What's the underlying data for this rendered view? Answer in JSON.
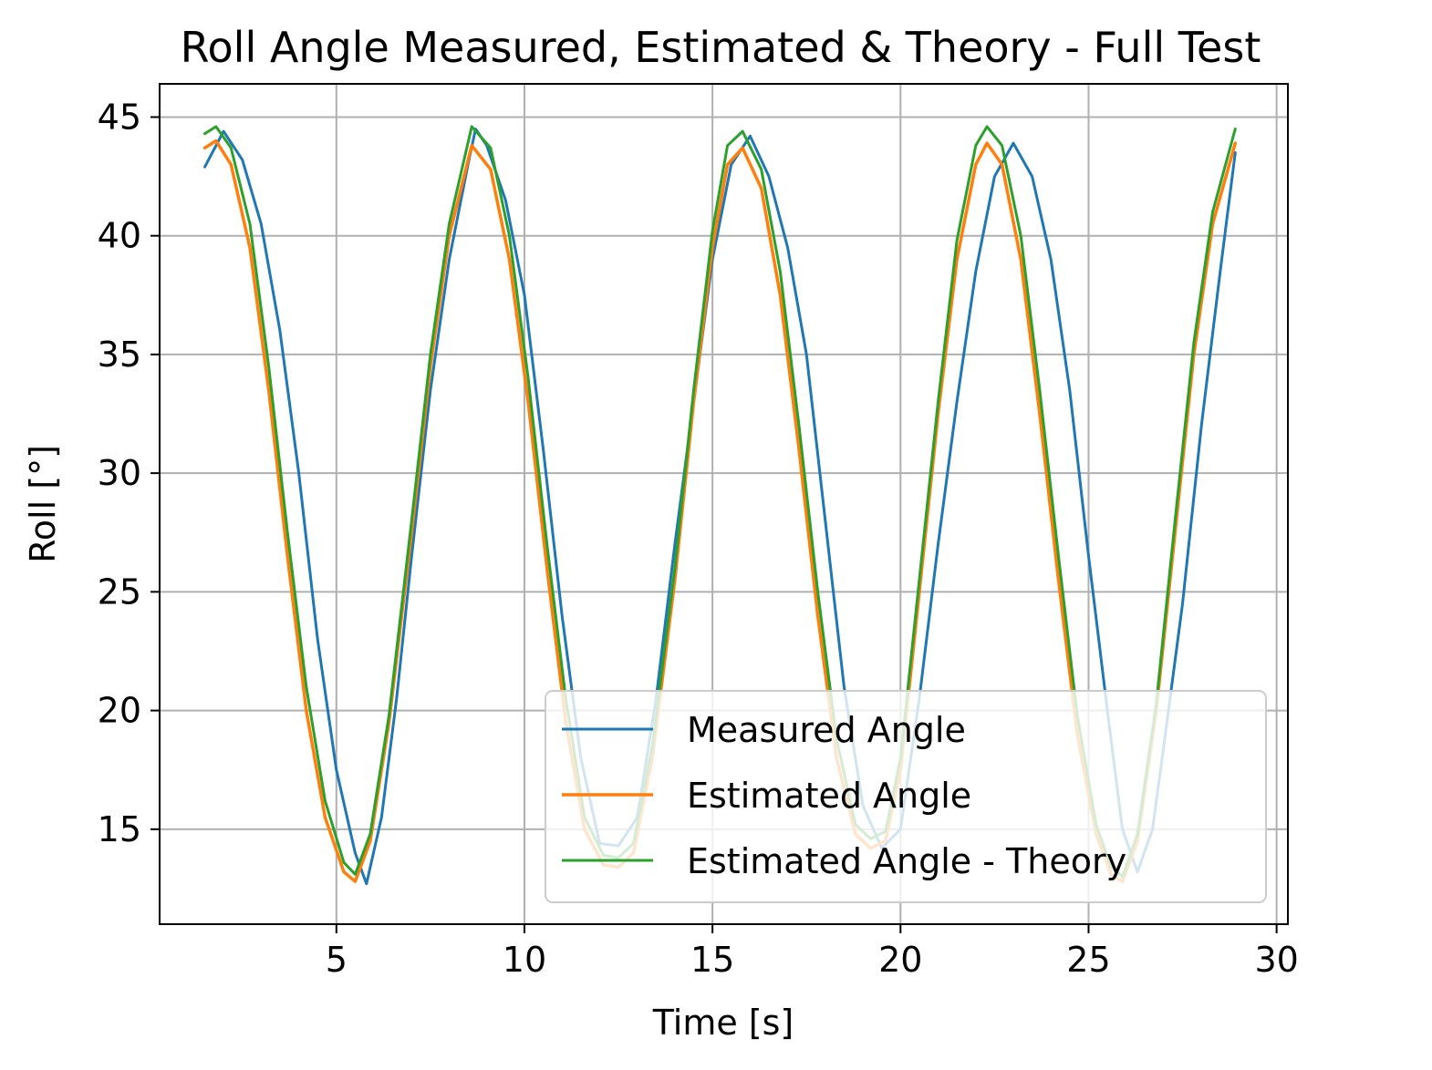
{
  "chart_data": {
    "type": "line",
    "title": "Roll Angle Measured, Estimated & Theory - Full Test",
    "xlabel": "Time [s]",
    "ylabel": "Roll [°]",
    "xlim": [
      0.3,
      30.3
    ],
    "ylim": [
      11.0,
      46.4
    ],
    "xticks": [
      5,
      10,
      15,
      20,
      25,
      30
    ],
    "yticks": [
      15,
      20,
      25,
      30,
      35,
      40,
      45
    ],
    "grid": true,
    "legend_position": "lower-right",
    "series": [
      {
        "name": "Measured Angle",
        "color": "#1f77b4",
        "x": [
          1.5,
          2.0,
          2.5,
          3.0,
          3.5,
          4.0,
          4.5,
          5.0,
          5.5,
          5.8,
          6.2,
          6.6,
          7.0,
          7.5,
          8.0,
          8.5,
          8.7,
          9.0,
          9.5,
          10.0,
          10.5,
          11.0,
          11.5,
          12.0,
          12.5,
          13.0,
          13.5,
          14.0,
          14.5,
          15.0,
          15.5,
          16.0,
          16.5,
          17.0,
          17.5,
          18.0,
          18.5,
          19.0,
          19.5,
          20.0,
          20.5,
          21.0,
          21.5,
          22.0,
          22.5,
          23.0,
          23.5,
          24.0,
          24.5,
          25.0,
          25.5,
          25.9,
          26.3,
          26.7,
          27.0,
          27.5,
          28.0,
          28.5,
          28.9
        ],
        "y": [
          42.9,
          44.4,
          43.2,
          40.5,
          36.0,
          30.0,
          23.0,
          17.5,
          14.0,
          12.7,
          15.5,
          20.5,
          26.5,
          33.5,
          39.0,
          43.0,
          44.5,
          43.8,
          41.5,
          37.5,
          31.0,
          24.0,
          18.0,
          14.4,
          14.3,
          15.5,
          20.5,
          27.0,
          33.0,
          39.0,
          43.0,
          44.2,
          42.5,
          39.5,
          35.0,
          28.0,
          21.0,
          16.0,
          14.2,
          15.0,
          20.5,
          27.0,
          33.0,
          38.5,
          42.5,
          43.9,
          42.5,
          39.0,
          33.5,
          26.5,
          20.0,
          15.0,
          13.2,
          15.0,
          18.5,
          24.5,
          32.0,
          38.5,
          43.5
        ]
      },
      {
        "name": "Estimated Angle",
        "color": "#ff7f0e",
        "x": [
          1.5,
          1.8,
          2.2,
          2.7,
          3.2,
          3.7,
          4.2,
          4.7,
          5.2,
          5.5,
          5.9,
          6.4,
          7.0,
          7.5,
          8.0,
          8.6,
          9.1,
          9.6,
          10.1,
          10.6,
          11.1,
          11.6,
          12.1,
          12.5,
          12.9,
          13.4,
          14.0,
          14.5,
          15.0,
          15.4,
          15.8,
          16.3,
          16.8,
          17.3,
          17.8,
          18.3,
          18.8,
          19.2,
          19.6,
          20.0,
          20.5,
          21.0,
          21.5,
          22.0,
          22.3,
          22.7,
          23.2,
          23.7,
          24.2,
          24.7,
          25.2,
          25.6,
          25.9,
          26.3,
          26.8,
          27.3,
          27.8,
          28.3,
          28.9
        ],
        "y": [
          43.7,
          44.0,
          43.0,
          39.5,
          33.5,
          26.5,
          20.0,
          15.5,
          13.2,
          12.8,
          14.5,
          19.5,
          27.5,
          34.5,
          40.0,
          43.8,
          42.8,
          39.0,
          33.0,
          26.0,
          19.5,
          15.0,
          13.5,
          13.4,
          14.0,
          18.0,
          25.5,
          33.0,
          39.5,
          43.0,
          43.7,
          42.0,
          37.5,
          31.0,
          24.0,
          18.0,
          14.8,
          14.2,
          14.5,
          17.5,
          25.0,
          32.5,
          39.0,
          43.0,
          43.9,
          43.0,
          39.0,
          32.5,
          25.5,
          19.0,
          14.8,
          13.1,
          12.8,
          14.5,
          20.0,
          27.5,
          35.0,
          40.5,
          43.9
        ]
      },
      {
        "name": "Estimated Angle - Theory",
        "color": "#2ca02c",
        "x": [
          1.5,
          1.8,
          2.2,
          2.7,
          3.2,
          3.7,
          4.2,
          4.7,
          5.2,
          5.5,
          5.9,
          6.4,
          7.0,
          7.5,
          8.0,
          8.6,
          9.1,
          9.6,
          10.1,
          10.6,
          11.1,
          11.6,
          12.1,
          12.5,
          12.9,
          13.4,
          14.0,
          14.5,
          15.0,
          15.4,
          15.8,
          16.3,
          16.8,
          17.3,
          17.8,
          18.3,
          18.8,
          19.2,
          19.6,
          20.0,
          20.5,
          21.0,
          21.5,
          22.0,
          22.3,
          22.7,
          23.2,
          23.7,
          24.2,
          24.7,
          25.2,
          25.6,
          25.9,
          26.3,
          26.8,
          27.3,
          27.8,
          28.3,
          28.9
        ],
        "y": [
          44.3,
          44.6,
          43.7,
          40.5,
          34.5,
          27.5,
          21.0,
          16.2,
          13.6,
          13.1,
          14.8,
          19.8,
          28.0,
          35.0,
          40.5,
          44.6,
          43.7,
          40.0,
          34.0,
          27.0,
          20.5,
          15.5,
          13.9,
          13.8,
          14.4,
          18.5,
          26.0,
          33.5,
          40.2,
          43.8,
          44.4,
          42.8,
          38.5,
          32.0,
          25.0,
          18.8,
          15.2,
          14.6,
          14.9,
          18.0,
          25.5,
          33.0,
          39.8,
          43.8,
          44.6,
          43.8,
          40.0,
          33.5,
          26.5,
          19.8,
          15.2,
          13.4,
          13.0,
          14.8,
          20.3,
          28.0,
          35.5,
          41.0,
          44.5
        ]
      }
    ]
  }
}
